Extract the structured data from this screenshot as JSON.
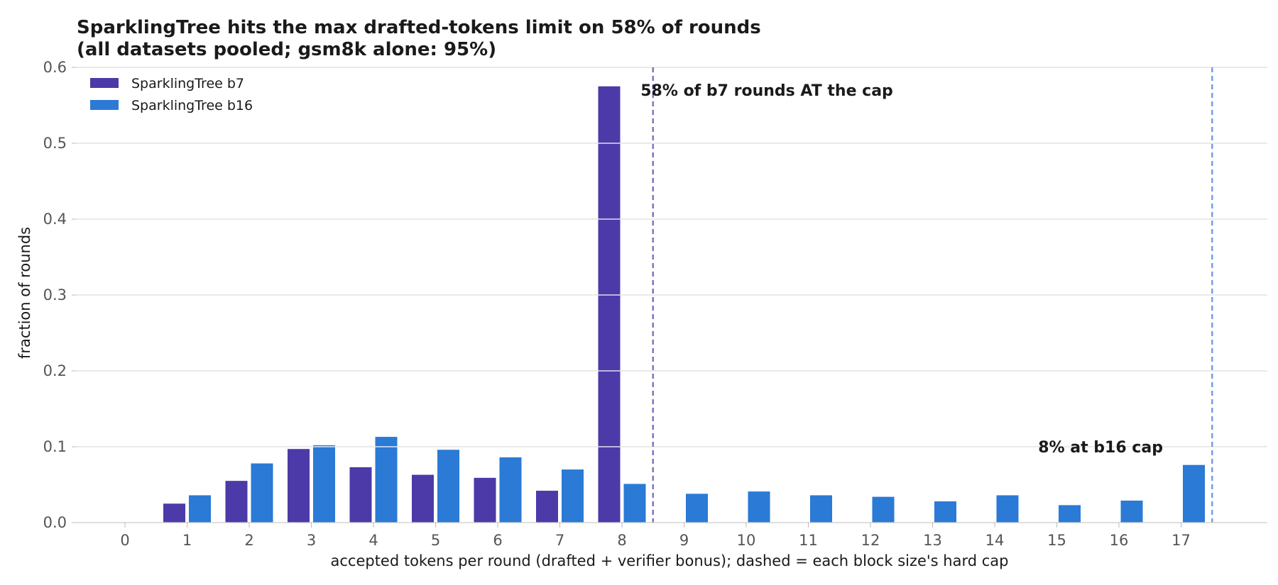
{
  "chart_data": {
    "type": "bar",
    "title": [
      "SparklingTree hits the max drafted-tokens limit on 58% of rounds",
      "(all datasets pooled; gsm8k alone: 95%)"
    ],
    "xlabel": "accepted tokens per round (drafted + verifier bonus); dashed = each block size's hard cap",
    "ylabel": "fraction of rounds",
    "categories": [
      "0",
      "1",
      "2",
      "3",
      "4",
      "5",
      "6",
      "7",
      "8",
      "9",
      "10",
      "11",
      "12",
      "13",
      "14",
      "15",
      "16",
      "17"
    ],
    "ylim": [
      0,
      0.6
    ],
    "yticks": [
      "0.0",
      "0.1",
      "0.2",
      "0.3",
      "0.4",
      "0.5",
      "0.6"
    ],
    "grid": "horizontal",
    "legend_position": "top-left",
    "series": [
      {
        "name": "SparklingTree b7",
        "color": "#4b3aa8",
        "values": [
          0,
          0.025,
          0.055,
          0.097,
          0.073,
          0.063,
          0.059,
          0.042,
          0.575,
          null,
          null,
          null,
          null,
          null,
          null,
          null,
          null,
          null
        ]
      },
      {
        "name": "SparklingTree b16",
        "color": "#2a7ad6",
        "values": [
          0,
          0.036,
          0.078,
          0.102,
          0.113,
          0.096,
          0.086,
          0.07,
          0.051,
          0.038,
          0.041,
          0.036,
          0.034,
          0.028,
          0.036,
          0.023,
          0.029,
          0.076
        ]
      }
    ],
    "cap_lines": [
      {
        "x": 8.5,
        "color": "#7a6fc4",
        "series": "SparklingTree b7"
      },
      {
        "x": 17.5,
        "color": "#6f9be8",
        "series": "SparklingTree b16"
      }
    ],
    "annotations": [
      {
        "text": "58% of b7 rounds AT the cap",
        "x": 8.3,
        "y": 0.57
      },
      {
        "text": "8% at b16 cap",
        "x": 14.7,
        "y": 0.1
      }
    ]
  }
}
